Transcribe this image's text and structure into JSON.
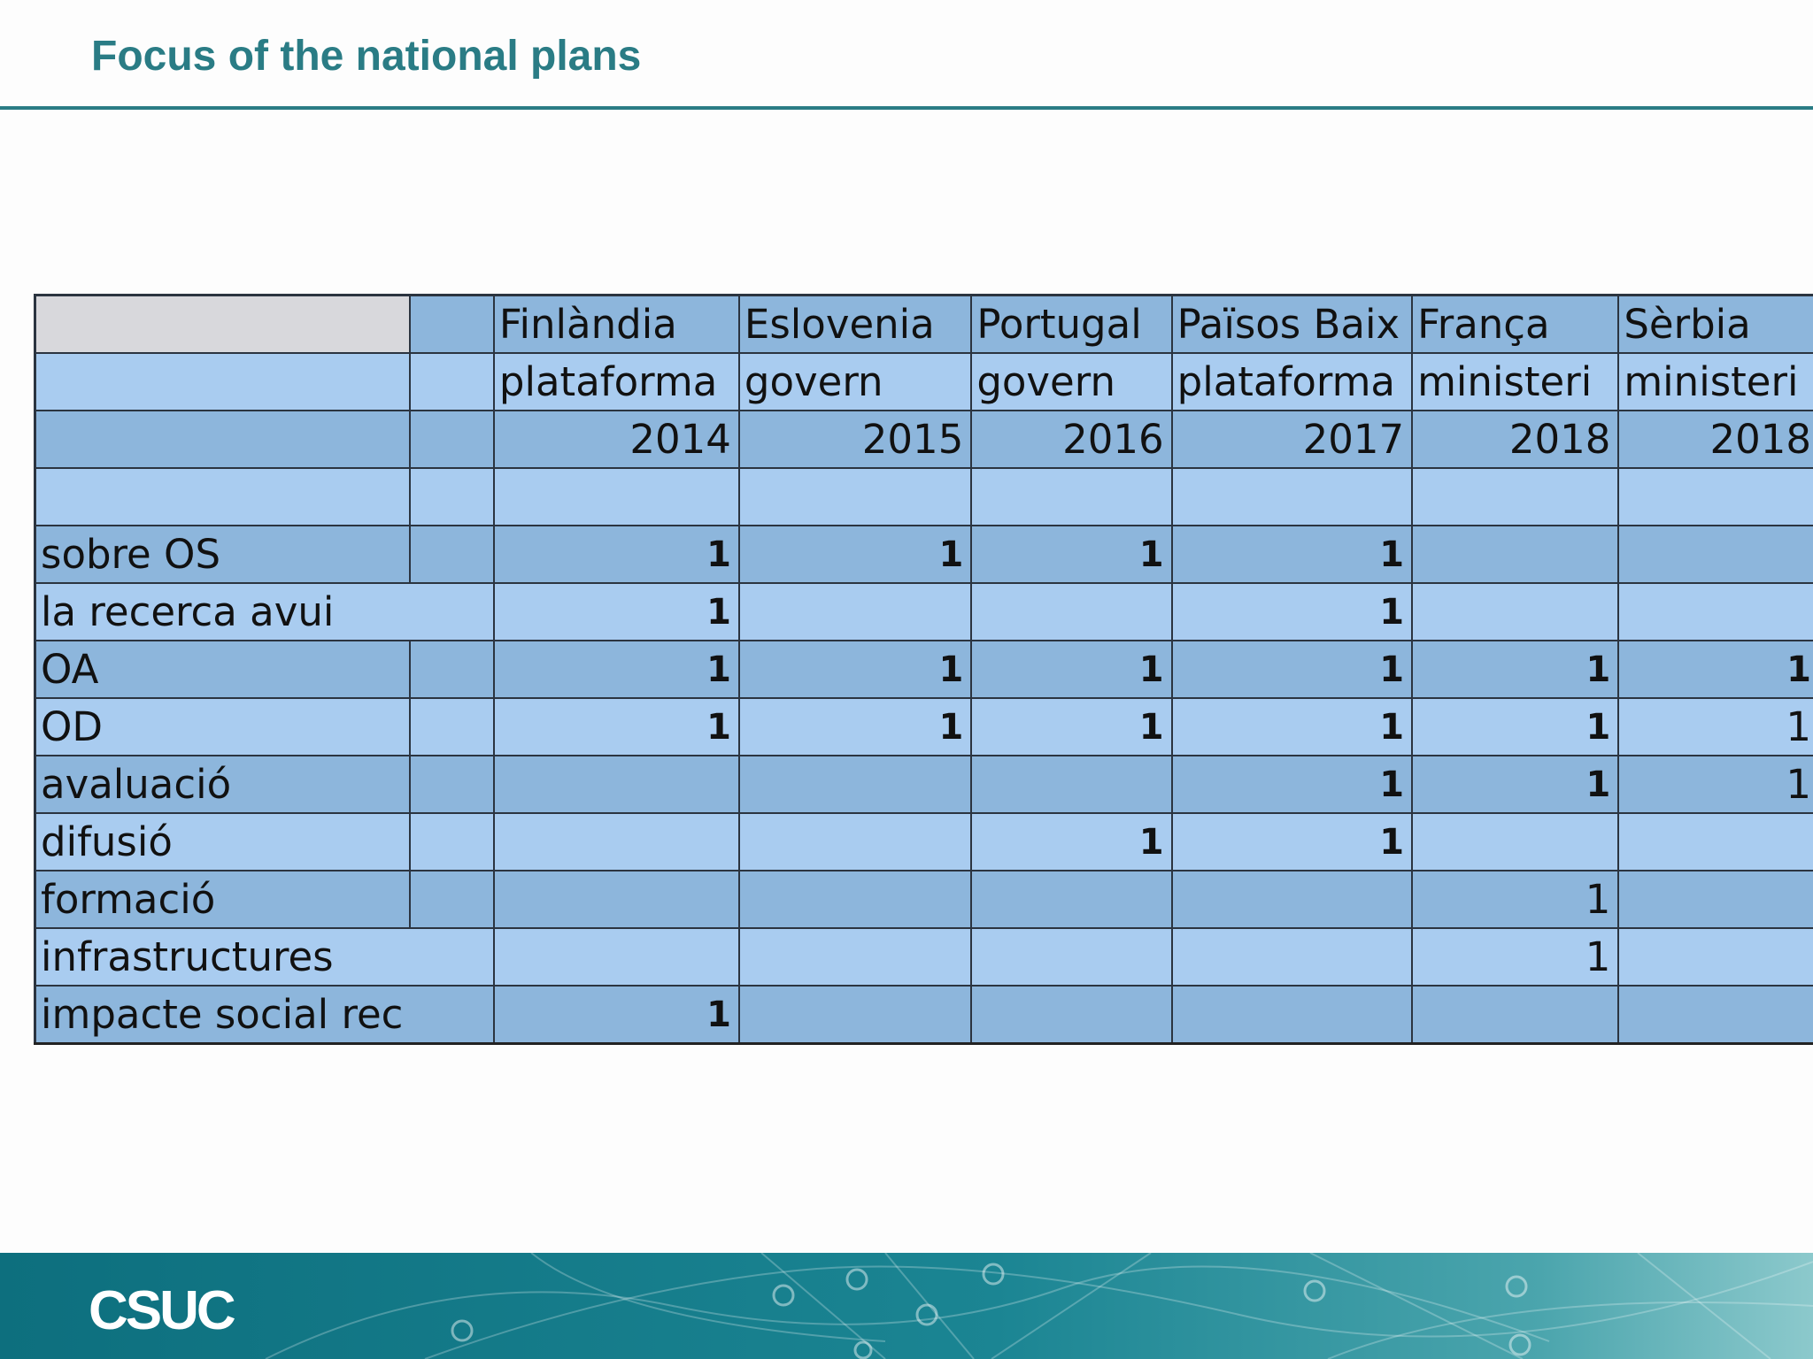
{
  "slide": {
    "title": "Focus of the national plans"
  },
  "table": {
    "header_countries": [
      "Finlàndia",
      "Eslovenia",
      "Portugal",
      "Països Baix",
      "França",
      "Sèrbia"
    ],
    "header_types": [
      "plataforma",
      "govern",
      "govern",
      "plataforma",
      "ministeri",
      "ministeri"
    ],
    "header_years": [
      "2014",
      "2015",
      "2016",
      "2017",
      "2018",
      "2018"
    ],
    "rows": [
      {
        "label": "sobre OS",
        "values": [
          "1",
          "1",
          "1",
          "1",
          "",
          ""
        ]
      },
      {
        "label": "la recerca avui",
        "values": [
          "1",
          "",
          "",
          "1",
          "",
          ""
        ]
      },
      {
        "label": "OA",
        "values": [
          "1",
          "1",
          "1",
          "1",
          "1",
          "1"
        ]
      },
      {
        "label": "OD",
        "values": [
          "1",
          "1",
          "1",
          "1",
          "1",
          "1"
        ]
      },
      {
        "label": "avaluació",
        "values": [
          "",
          "",
          "",
          "1",
          "1",
          "1"
        ]
      },
      {
        "label": "difusió",
        "values": [
          "",
          "",
          "1",
          "1",
          "",
          ""
        ]
      },
      {
        "label": "formació",
        "values": [
          "",
          "",
          "",
          "",
          "1",
          ""
        ]
      },
      {
        "label": "infrastructures",
        "values": [
          "",
          "",
          "",
          "",
          "1",
          ""
        ]
      },
      {
        "label": "impacte social rec",
        "values": [
          "1",
          "",
          "",
          "",
          "",
          ""
        ]
      }
    ]
  },
  "footer": {
    "logo_text": "CSUC",
    "logo_icon": "csuc-logo"
  },
  "colors": {
    "title": "#2a7c85",
    "rule": "#2a7c85",
    "cell_dark": "#8db6dc",
    "cell_light": "#a9ccf0",
    "corner_cell": "#d8d8dc",
    "footer": "#1b8593"
  }
}
